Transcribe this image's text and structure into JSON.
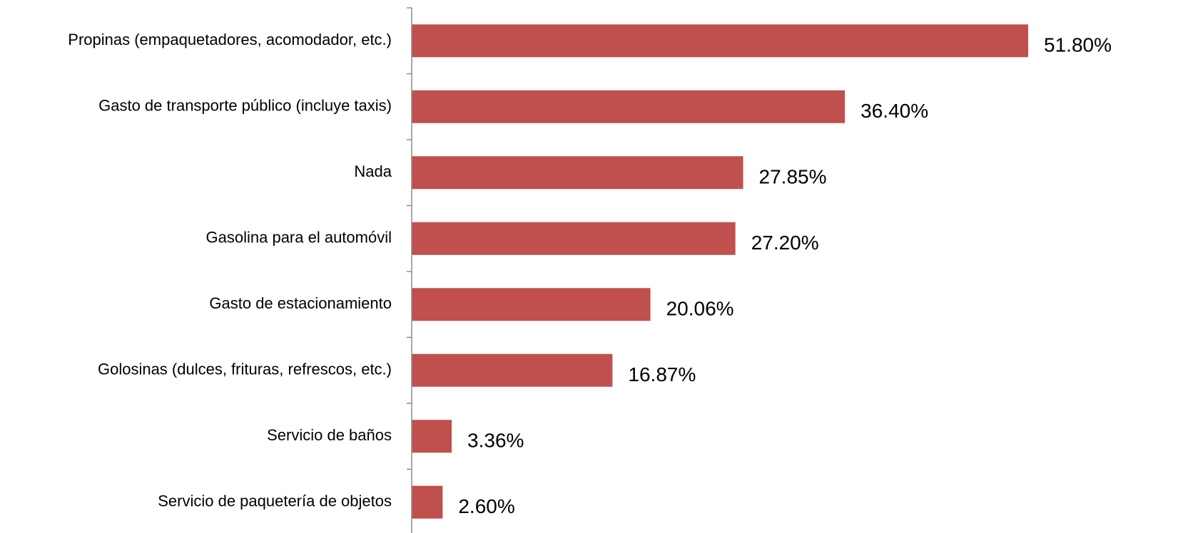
{
  "chart_data": {
    "type": "bar",
    "orientation": "horizontal",
    "categories": [
      "Propinas (empaquetadores, acomodador, etc.)",
      "Gasto de transporte público (incluye taxis)",
      "Nada",
      "Gasolina para el automóvil",
      "Gasto de estacionamiento",
      "Golosinas (dulces, frituras, refrescos, etc.)",
      "Servicio de baños",
      "Servicio de paquetería de objetos"
    ],
    "values": [
      51.8,
      36.4,
      27.85,
      27.2,
      20.06,
      16.87,
      3.36,
      2.6
    ],
    "value_labels": [
      "51.80%",
      "36.40%",
      "27.85%",
      "27.20%",
      "20.06%",
      "16.87%",
      "3.36%",
      "2.60%"
    ],
    "title": "",
    "xlabel": "",
    "ylabel": "",
    "xlim": [
      0,
      55
    ],
    "grid": false,
    "legend": "none",
    "bar_color": "#c0504d",
    "axis_color": "#8c8c8c"
  }
}
